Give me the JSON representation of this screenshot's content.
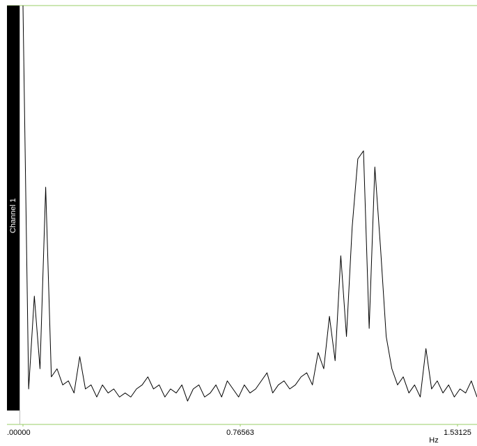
{
  "chart_data": {
    "type": "line",
    "channel_label": "Channel 1",
    "x_label": "Hz",
    "xlim": [
      0,
      1.6
    ],
    "ylim": [
      0,
      100
    ],
    "xticks": [
      {
        "value": 0,
        "label": ".00000"
      },
      0.76563,
      1.53125
    ],
    "x": [
      0,
      0.02,
      0.04,
      0.06,
      0.08,
      0.1,
      0.12,
      0.14,
      0.16,
      0.18,
      0.2,
      0.22,
      0.24,
      0.26,
      0.28,
      0.3,
      0.32,
      0.34,
      0.36,
      0.38,
      0.4,
      0.42,
      0.44,
      0.46,
      0.48,
      0.5,
      0.52,
      0.54,
      0.56,
      0.58,
      0.6,
      0.62,
      0.64,
      0.66,
      0.68,
      0.7,
      0.72,
      0.74,
      0.76,
      0.78,
      0.8,
      0.82,
      0.84,
      0.86,
      0.88,
      0.9,
      0.92,
      0.94,
      0.96,
      0.98,
      1,
      1.02,
      1.04,
      1.06,
      1.08,
      1.1,
      1.12,
      1.14,
      1.16,
      1.18,
      1.2,
      1.22,
      1.24,
      1.26,
      1.28,
      1.3,
      1.32,
      1.34,
      1.36,
      1.38,
      1.4,
      1.42,
      1.44,
      1.46,
      1.48,
      1.5,
      1.52,
      1.54,
      1.56,
      1.58,
      1.6
    ],
    "series": [
      {
        "color": "#000000",
        "values": [
          100,
          5,
          28,
          10,
          55,
          8,
          10,
          6,
          7,
          4,
          13,
          5,
          6,
          3,
          6,
          4,
          5,
          3,
          4,
          3,
          5,
          6,
          8,
          5,
          6,
          3,
          5,
          4,
          6,
          2,
          5,
          6,
          3,
          4,
          6,
          3,
          7,
          5,
          3,
          6,
          4,
          5,
          7,
          9,
          4,
          6,
          7,
          5,
          6,
          8,
          9,
          6,
          14,
          10,
          23,
          12,
          38,
          18,
          45,
          62,
          64,
          20,
          60,
          40,
          18,
          10,
          6,
          8,
          4,
          6,
          3,
          15,
          5,
          7,
          4,
          6,
          3,
          5,
          4,
          7,
          3
        ]
      }
    ]
  }
}
